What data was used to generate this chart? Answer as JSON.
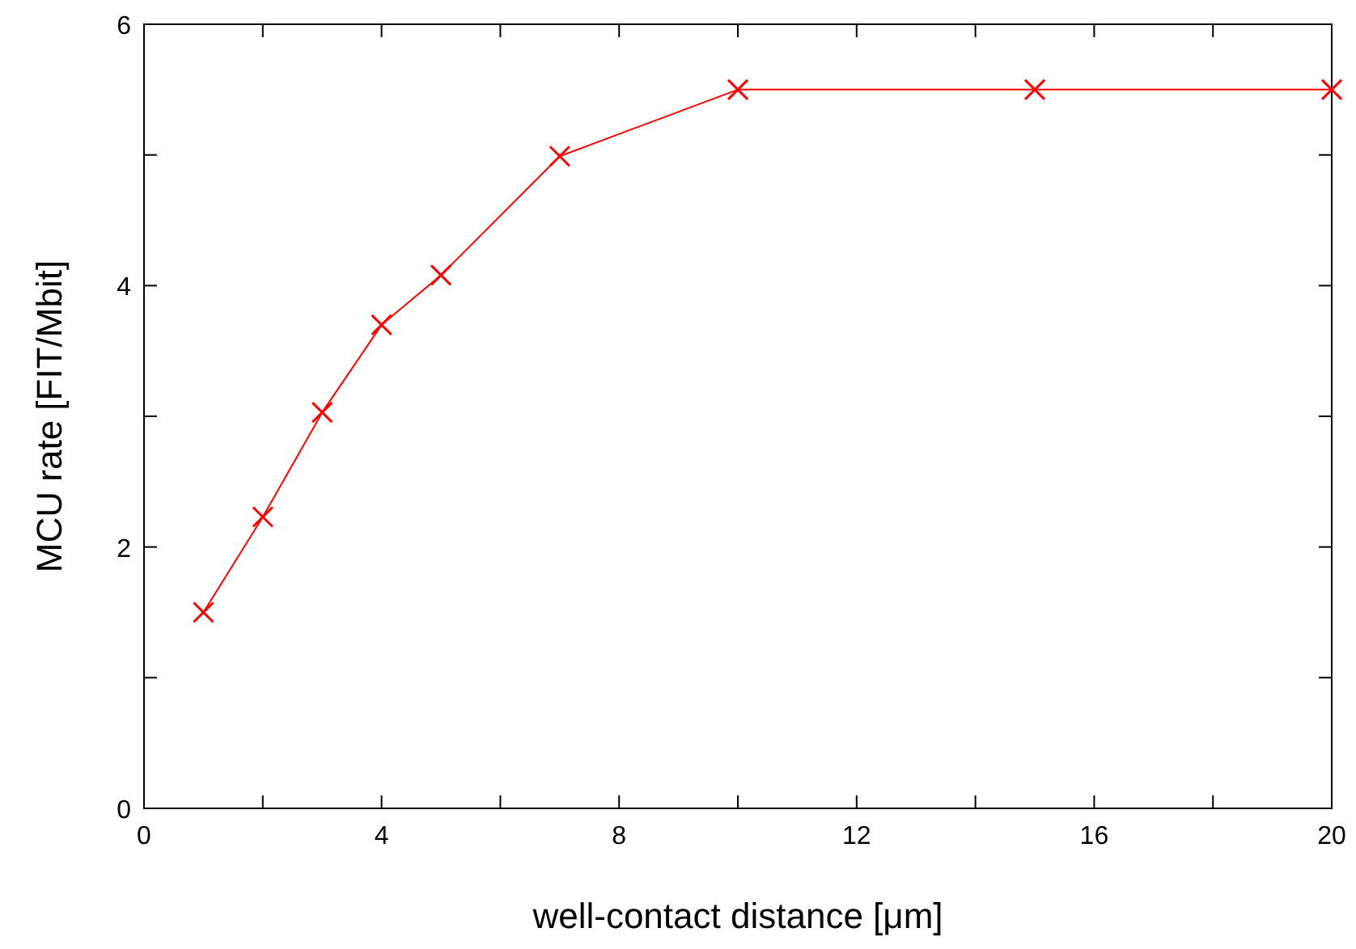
{
  "chart_data": {
    "type": "line",
    "xlabel": "well-contact distance [μm]",
    "ylabel": "MCU rate [FIT/Mbit]",
    "x": [
      1,
      2,
      3,
      4,
      5,
      7,
      10,
      15,
      20
    ],
    "series": [
      {
        "color": "#ff0000",
        "values": [
          1.5,
          2.23,
          3.03,
          3.7,
          4.08,
          4.99,
          5.5,
          5.5,
          5.5
        ]
      }
    ],
    "xlim": [
      0,
      20
    ],
    "xticks": [
      0,
      {
        "value": 2,
        "label": null
      },
      4,
      {
        "value": 6,
        "label": null
      },
      8,
      {
        "value": 10,
        "label": null
      },
      12,
      {
        "value": 14,
        "label": null
      },
      16,
      {
        "value": 18,
        "label": null
      },
      20
    ],
    "ylim": [
      0,
      6
    ],
    "yticks": [
      0,
      {
        "value": 1,
        "label": null
      },
      2,
      {
        "value": 3,
        "label": null
      },
      4,
      {
        "value": 5,
        "label": null
      },
      6
    ],
    "grid": false,
    "marker": "cross",
    "line_style": "solid"
  }
}
